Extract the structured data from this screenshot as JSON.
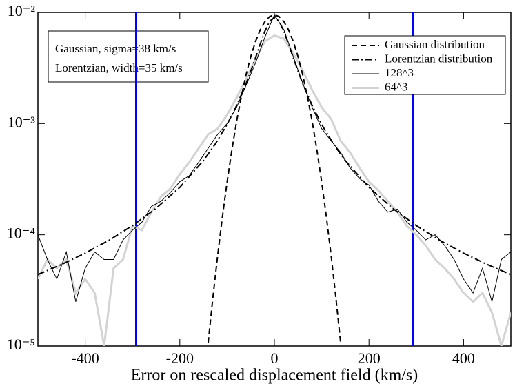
{
  "chart_data": {
    "type": "line",
    "xlabel": "Error on rescaled displacement field (km/s)",
    "xlim": [
      -500,
      500
    ],
    "xticks": [
      -400,
      -200,
      0,
      200,
      400
    ],
    "ylim": [
      1e-05,
      0.01
    ],
    "log_y": true,
    "yticks": [
      {
        "value": 1e-05,
        "label": "10⁻⁵"
      },
      {
        "value": 0.0001,
        "label": "10⁻⁴"
      },
      {
        "value": 0.001,
        "label": "10⁻³"
      },
      {
        "value": 0.01,
        "label": "10⁻²"
      }
    ],
    "annotations": [
      "Gaussian, sigma=38 km/s",
      "Lorentzian, width=35 km/s"
    ],
    "vlines": [
      {
        "x": -293,
        "color": "#0000ff"
      },
      {
        "x": 293,
        "color": "#0000ff"
      }
    ],
    "legend": "upper right",
    "series": [
      {
        "name": "Gaussian distribution",
        "color": "#000000",
        "dash": "8,5",
        "width": 2,
        "x": [
          -140,
          -130,
          -120,
          -110,
          -100,
          -90,
          -80,
          -70,
          -60,
          -50,
          -40,
          -30,
          -20,
          -10,
          0,
          10,
          20,
          30,
          40,
          50,
          60,
          70,
          80,
          90,
          100,
          110,
          120,
          130,
          140
        ],
        "values": [
          1.07e-05,
          2.73e-05,
          6.49e-05,
          0.000144,
          0.000298,
          0.000575,
          0.00104,
          0.00174,
          0.00273,
          0.004,
          0.00546,
          0.00696,
          0.00827,
          0.00918,
          0.0095,
          0.00918,
          0.00827,
          0.00696,
          0.00546,
          0.004,
          0.00273,
          0.00174,
          0.00104,
          0.000575,
          0.000298,
          0.000144,
          6.49e-05,
          2.73e-05,
          1.07e-05
        ]
      },
      {
        "name": "Lorentzian distribution",
        "color": "#000000",
        "dash": "10,4,2,4",
        "width": 2,
        "x": [
          -500,
          -450,
          -400,
          -350,
          -300,
          -250,
          -200,
          -150,
          -125,
          -100,
          -80,
          -60,
          -50,
          -40,
          -30,
          -20,
          -10,
          0,
          10,
          20,
          30,
          40,
          50,
          60,
          80,
          100,
          125,
          150,
          200,
          250,
          300,
          350,
          400,
          450,
          500
        ],
        "values": [
          4.39e-05,
          5.41e-05,
          6.84e-05,
          8.91e-05,
          0.000121,
          0.000173,
          0.000267,
          0.000465,
          0.000654,
          0.000982,
          0.00145,
          0.00228,
          0.00296,
          0.0039,
          0.00519,
          0.00678,
          0.00832,
          0.009,
          0.00832,
          0.00678,
          0.00519,
          0.0039,
          0.00296,
          0.00228,
          0.00145,
          0.000982,
          0.000654,
          0.000465,
          0.000267,
          0.000173,
          0.000121,
          8.91e-05,
          6.84e-05,
          5.41e-05,
          4.39e-05
        ]
      },
      {
        "name": "128^3",
        "color": "#000000",
        "dash": "",
        "width": 1,
        "x": [
          -500,
          -480,
          -460,
          -440,
          -420,
          -400,
          -380,
          -360,
          -340,
          -320,
          -300,
          -280,
          -260,
          -240,
          -220,
          -200,
          -180,
          -160,
          -140,
          -120,
          -100,
          -80,
          -60,
          -40,
          -20,
          0,
          20,
          40,
          60,
          80,
          100,
          120,
          140,
          160,
          180,
          200,
          220,
          240,
          260,
          280,
          300,
          320,
          340,
          360,
          380,
          400,
          420,
          440,
          460,
          480,
          500
        ],
        "values": [
          0.0001,
          6e-05,
          4e-05,
          7e-05,
          2.5e-05,
          5e-05,
          7e-05,
          6e-05,
          6e-05,
          9e-05,
          0.00011,
          0.00013,
          0.00018,
          0.0002,
          0.00024,
          0.0003,
          0.00034,
          0.00045,
          0.0006,
          0.0008,
          0.001,
          0.0014,
          0.0022,
          0.0035,
          0.006,
          0.0095,
          0.007,
          0.004,
          0.0023,
          0.0014,
          0.0009,
          0.0007,
          0.00055,
          0.0004,
          0.00032,
          0.00028,
          0.0002,
          0.00016,
          0.00017,
          0.00013,
          0.00011,
          9e-05,
          0.0001,
          8e-05,
          6e-05,
          4e-05,
          3e-05,
          5e-05,
          2.5e-05,
          6e-05,
          7e-05
        ]
      },
      {
        "name": "64^3",
        "color": "#d3d3d3",
        "dash": "",
        "width": 3,
        "x": [
          -500,
          -480,
          -460,
          -440,
          -420,
          -400,
          -380,
          -360,
          -340,
          -320,
          -300,
          -280,
          -260,
          -240,
          -220,
          -200,
          -180,
          -160,
          -140,
          -120,
          -100,
          -80,
          -60,
          -40,
          -20,
          0,
          20,
          40,
          60,
          80,
          100,
          120,
          140,
          160,
          180,
          200,
          220,
          240,
          260,
          280,
          300,
          320,
          340,
          360,
          380,
          400,
          420,
          440,
          460,
          480,
          500
        ],
        "values": [
          4e-05,
          6e-05,
          5e-05,
          6e-05,
          3e-05,
          4e-05,
          3e-05,
          1e-05,
          5e-05,
          6e-05,
          0.00012,
          0.00011,
          0.00016,
          0.00022,
          0.00026,
          0.00035,
          0.00045,
          0.0006,
          0.0008,
          0.0009,
          0.0012,
          0.0017,
          0.0025,
          0.0038,
          0.0055,
          0.0062,
          0.0058,
          0.0043,
          0.003,
          0.002,
          0.0014,
          0.0011,
          0.0007,
          0.00055,
          0.0004,
          0.0003,
          0.00025,
          0.0002,
          0.00016,
          0.00012,
          0.0001,
          8e-05,
          6e-05,
          5e-05,
          4e-05,
          3e-05,
          2.5e-05,
          3e-05,
          2e-05,
          1e-05,
          2e-05
        ]
      }
    ]
  }
}
